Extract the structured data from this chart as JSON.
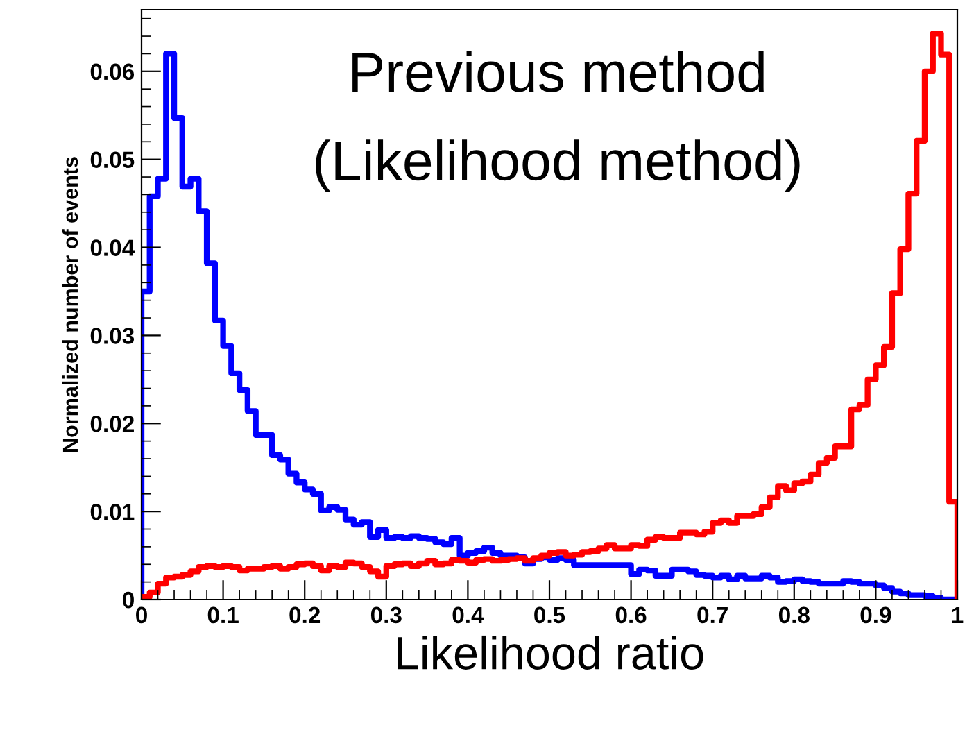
{
  "chart_data": {
    "type": "histogram",
    "title": "Previous method\n(Likelihood method)",
    "xlabel": "Likelihood ratio",
    "ylabel": "Normalized number of events",
    "bins": [
      0,
      0.01,
      0.02,
      0.03,
      0.04,
      0.05,
      0.06,
      0.07,
      0.08,
      0.09,
      0.1,
      0.11,
      0.12,
      0.13,
      0.14,
      0.15,
      0.16,
      0.17,
      0.18,
      0.19,
      0.2,
      0.21,
      0.22,
      0.23,
      0.24,
      0.25,
      0.26,
      0.27,
      0.28,
      0.29,
      0.3,
      0.31,
      0.32,
      0.33,
      0.34,
      0.35,
      0.36,
      0.37,
      0.38,
      0.39,
      0.4,
      0.41,
      0.42,
      0.43,
      0.44,
      0.45,
      0.46,
      0.47,
      0.48,
      0.49,
      0.5,
      0.51,
      0.52,
      0.53,
      0.54,
      0.55,
      0.56,
      0.57,
      0.58,
      0.59,
      0.6,
      0.61,
      0.62,
      0.63,
      0.64,
      0.65,
      0.66,
      0.67,
      0.68,
      0.69,
      0.7,
      0.71,
      0.72,
      0.73,
      0.74,
      0.75,
      0.76,
      0.77,
      0.78,
      0.79,
      0.8,
      0.81,
      0.82,
      0.83,
      0.84,
      0.85,
      0.86,
      0.87,
      0.88,
      0.89,
      0.9,
      0.91,
      0.92,
      0.93,
      0.94,
      0.95,
      0.96,
      0.97,
      0.98,
      0.99,
      1
    ],
    "series": [
      {
        "color": "#0000ff",
        "values": [
          0.035,
          0.0458,
          0.0478,
          0.062,
          0.0547,
          0.0469,
          0.0478,
          0.0441,
          0.0382,
          0.0317,
          0.0288,
          0.0257,
          0.0238,
          0.0214,
          0.0187,
          0.0187,
          0.0164,
          0.0159,
          0.0143,
          0.0133,
          0.0125,
          0.012,
          0.0101,
          0.0105,
          0.0102,
          0.0091,
          0.0085,
          0.0088,
          0.0071,
          0.0079,
          0.007,
          0.0071,
          0.007,
          0.0072,
          0.007,
          0.0069,
          0.0065,
          0.0063,
          0.007,
          0.005,
          0.0053,
          0.0055,
          0.0059,
          0.0053,
          0.005,
          0.005,
          0.0048,
          0.0041,
          0.0046,
          0.0048,
          0.0045,
          0.0047,
          0.0045,
          0.0039,
          0.0039,
          0.0039,
          0.0039,
          0.0039,
          0.0039,
          0.0039,
          0.0029,
          0.0034,
          0.0033,
          0.0027,
          0.0027,
          0.0034,
          0.0034,
          0.0032,
          0.0028,
          0.0027,
          0.0025,
          0.0027,
          0.0023,
          0.0027,
          0.0024,
          0.0024,
          0.0027,
          0.0025,
          0.002,
          0.0021,
          0.0023,
          0.0021,
          0.002,
          0.0018,
          0.0018,
          0.0018,
          0.0021,
          0.002,
          0.0018,
          0.0018,
          0.0016,
          0.0013,
          0.0009,
          0.0007,
          0.0005,
          0.0005,
          0.0004,
          0.0002,
          0,
          0
        ]
      },
      {
        "color": "#ff0000",
        "values": [
          0.0003,
          0.0008,
          0.0018,
          0.0025,
          0.0026,
          0.0028,
          0.0032,
          0.0037,
          0.0038,
          0.0037,
          0.0038,
          0.0037,
          0.0033,
          0.0035,
          0.0035,
          0.0037,
          0.0038,
          0.0035,
          0.0037,
          0.004,
          0.0041,
          0.0038,
          0.0033,
          0.0038,
          0.0037,
          0.0042,
          0.0041,
          0.0037,
          0.0032,
          0.0026,
          0.0038,
          0.004,
          0.0041,
          0.0038,
          0.0041,
          0.0044,
          0.004,
          0.0041,
          0.0045,
          0.0044,
          0.0042,
          0.0045,
          0.0046,
          0.0044,
          0.0045,
          0.0046,
          0.0047,
          0.0044,
          0.0047,
          0.005,
          0.0053,
          0.0054,
          0.005,
          0.0051,
          0.0054,
          0.0055,
          0.0058,
          0.0062,
          0.0058,
          0.0058,
          0.0062,
          0.0061,
          0.0068,
          0.0071,
          0.007,
          0.007,
          0.0076,
          0.0076,
          0.0074,
          0.0077,
          0.0087,
          0.009,
          0.0087,
          0.0095,
          0.0095,
          0.0097,
          0.0105,
          0.0116,
          0.0129,
          0.0124,
          0.0132,
          0.0134,
          0.0142,
          0.0155,
          0.0161,
          0.0174,
          0.0174,
          0.0216,
          0.0221,
          0.025,
          0.0266,
          0.0287,
          0.0348,
          0.0398,
          0.0461,
          0.0521,
          0.06,
          0.0643,
          0.0619,
          0.0111
        ]
      }
    ],
    "xlim": [
      0,
      1
    ],
    "ylim": [
      0,
      0.067
    ],
    "xticks": [
      0,
      0.1,
      0.2,
      0.3,
      0.4,
      0.5,
      0.6,
      0.7,
      0.8,
      0.9,
      1
    ],
    "yticks": [
      0,
      0.01,
      0.02,
      0.03,
      0.04,
      0.05,
      0.06
    ],
    "grid": false,
    "legend": false
  }
}
